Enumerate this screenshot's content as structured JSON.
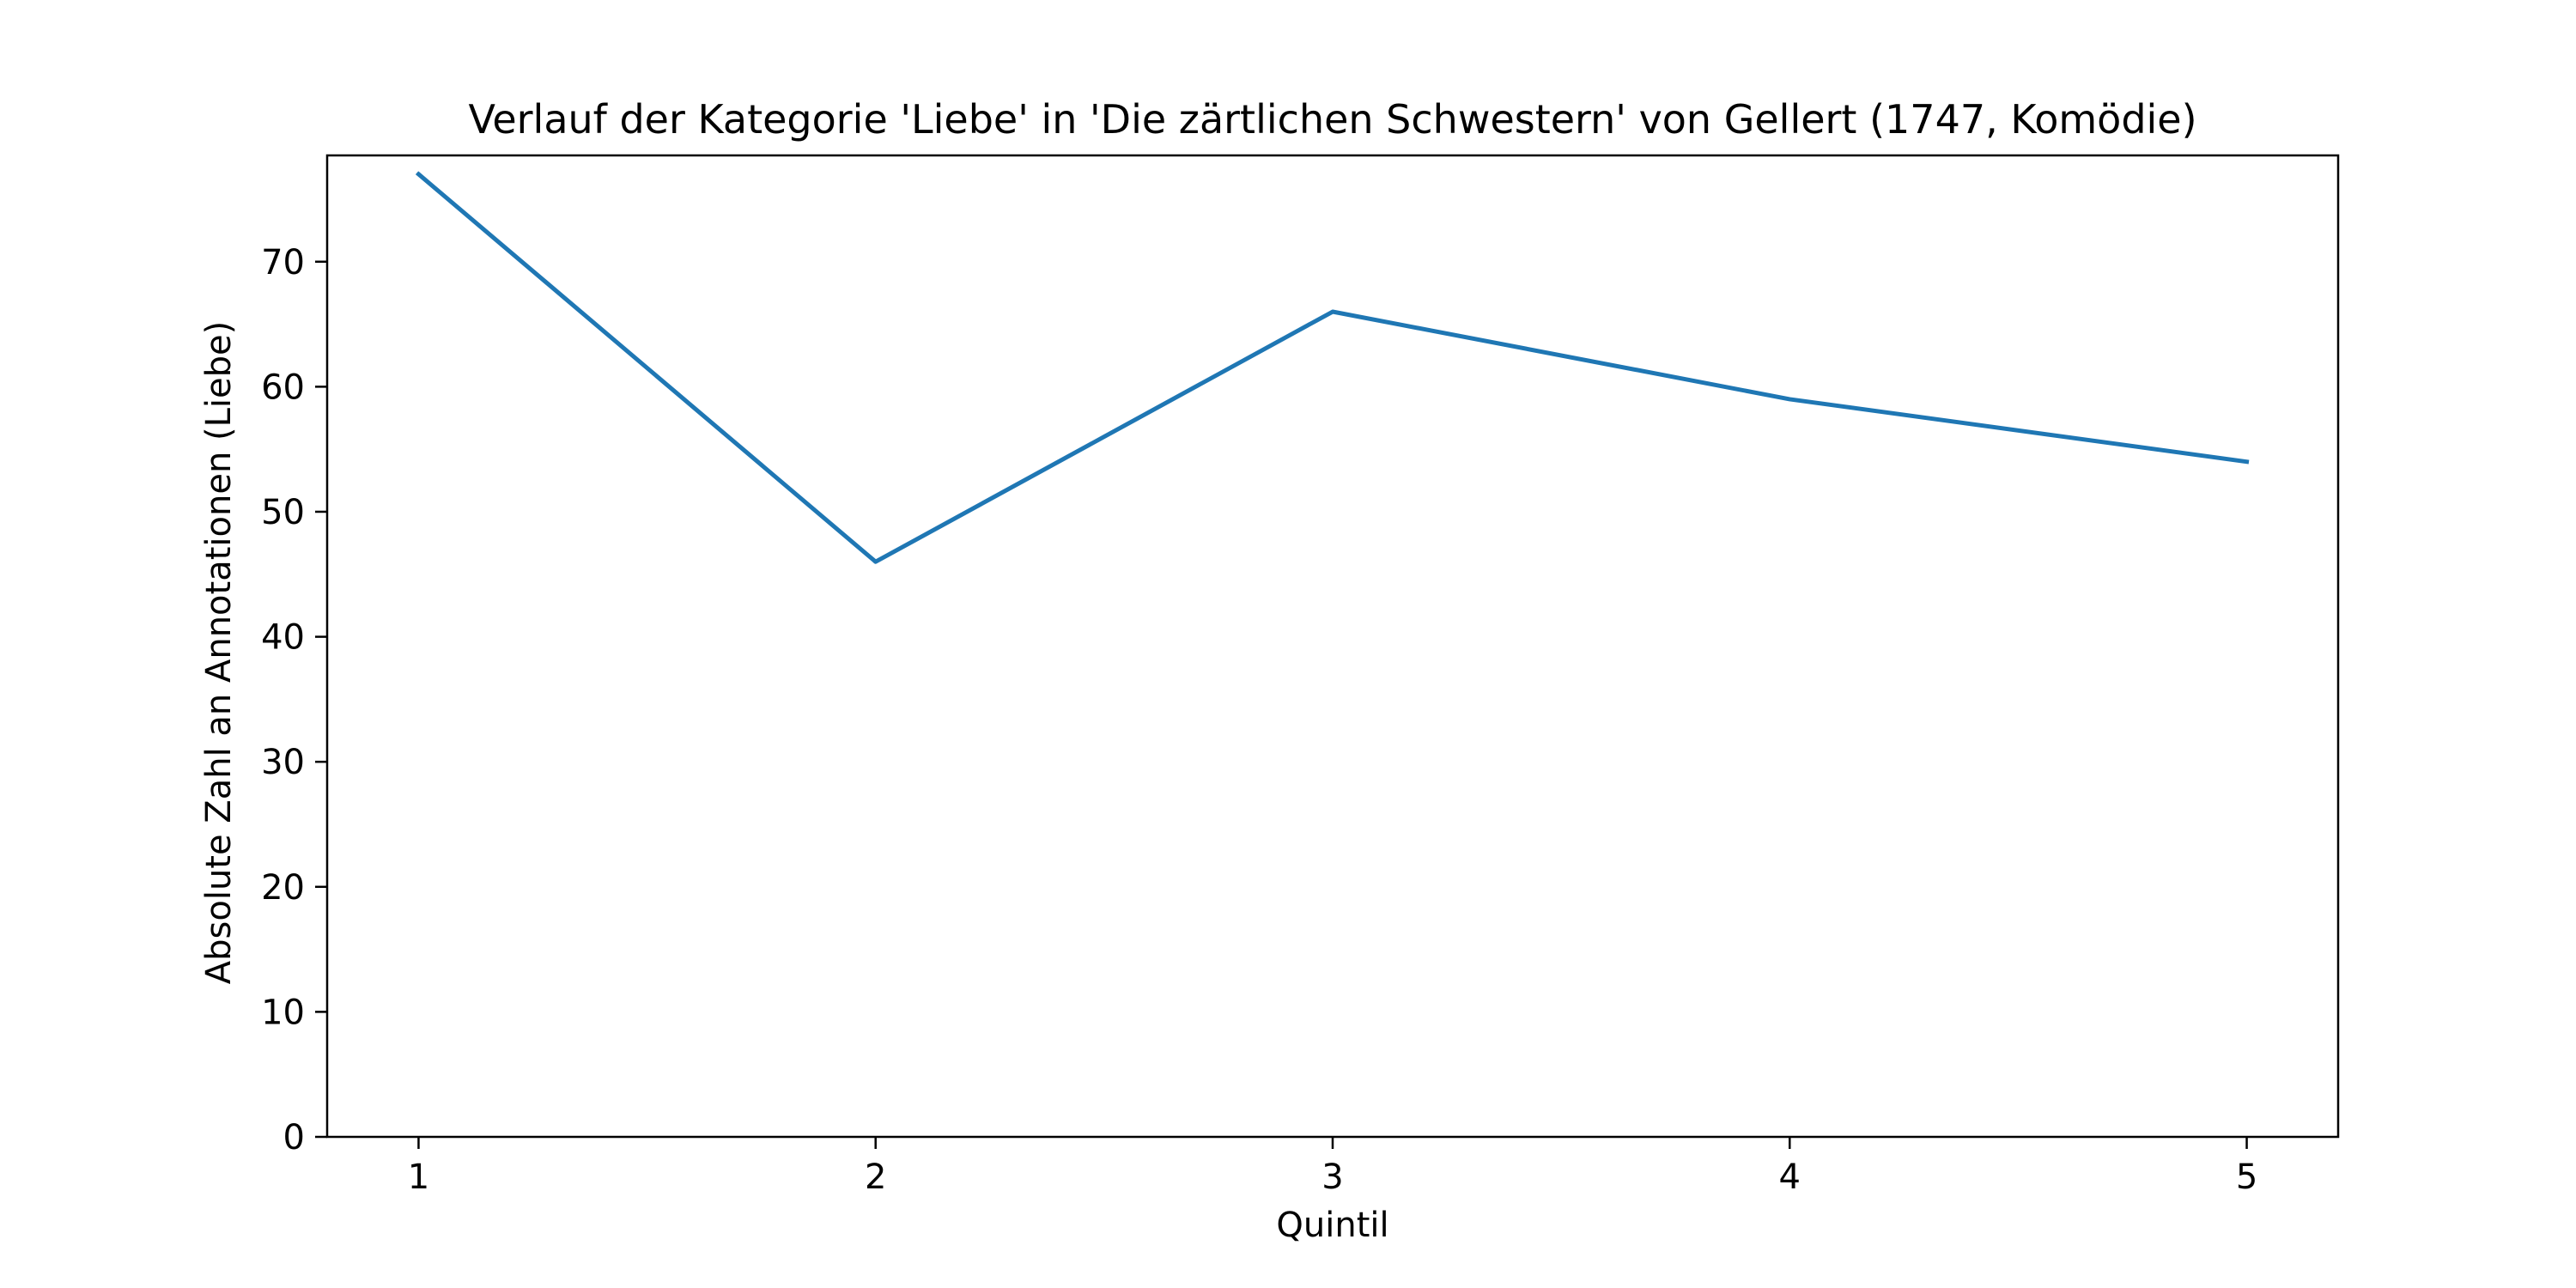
{
  "chart_data": {
    "type": "line",
    "title": "Verlauf der Kategorie 'Liebe' in 'Die zärtlichen Schwestern' von Gellert (1747, Komödie)",
    "xlabel": "Quintil",
    "ylabel": "Absolute Zahl an Annotationen (Liebe)",
    "x": [
      1,
      2,
      3,
      4,
      5
    ],
    "series": [
      {
        "values": [
          77,
          46,
          66,
          59,
          54
        ],
        "color": "#1f77b4"
      }
    ],
    "xlim": [
      0.8,
      5.2
    ],
    "ylim": [
      0,
      78.5
    ],
    "xticks": [
      1,
      2,
      3,
      4,
      5
    ],
    "yticks": [
      0,
      10,
      20,
      30,
      40,
      50,
      60,
      70
    ],
    "grid": false,
    "legend": "none"
  }
}
